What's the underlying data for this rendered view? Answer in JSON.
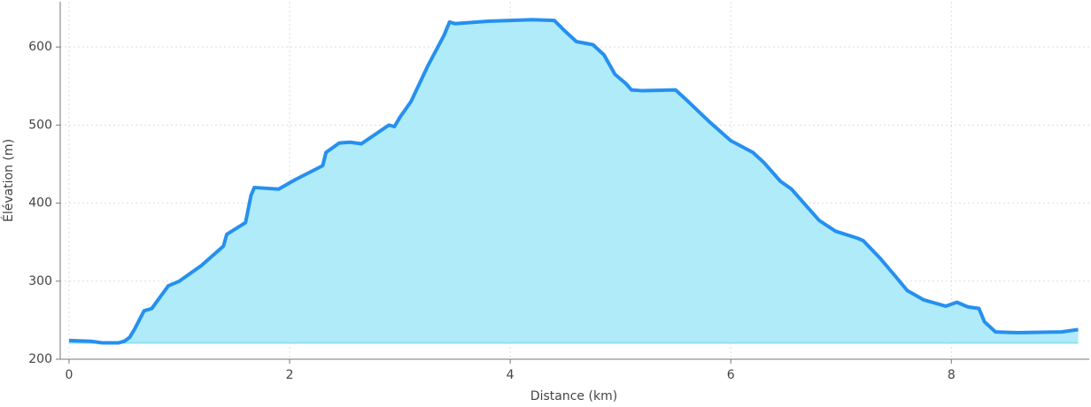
{
  "chart_data": {
    "type": "area",
    "xlabel": "Distance (km)",
    "ylabel": "Élévation (m)",
    "x": [
      0,
      0.2,
      0.3,
      0.45,
      0.5,
      0.55,
      0.6,
      0.68,
      0.75,
      0.9,
      1.0,
      1.2,
      1.4,
      1.43,
      1.6,
      1.65,
      1.68,
      1.9,
      2.05,
      2.3,
      2.33,
      2.45,
      2.55,
      2.65,
      2.9,
      2.95,
      3.0,
      3.1,
      3.15,
      3.25,
      3.4,
      3.45,
      3.5,
      3.8,
      4.2,
      4.4,
      4.5,
      4.6,
      4.75,
      4.85,
      4.95,
      5.05,
      5.1,
      5.2,
      5.5,
      5.6,
      5.8,
      6.0,
      6.2,
      6.3,
      6.45,
      6.55,
      6.65,
      6.8,
      6.95,
      7.15,
      7.2,
      7.35,
      7.5,
      7.6,
      7.75,
      7.85,
      7.95,
      8.05,
      8.15,
      8.25,
      8.3,
      8.4,
      8.6,
      9.0,
      9.15
    ],
    "series": [
      {
        "name": "Élévation",
        "color": "#2590f0",
        "fill": "#b0ebfa",
        "values": [
          224,
          223,
          221,
          221,
          223,
          228,
          240,
          262,
          265,
          294,
          300,
          320,
          345,
          360,
          375,
          410,
          420,
          418,
          430,
          448,
          465,
          477,
          478,
          476,
          500,
          498,
          510,
          530,
          545,
          575,
          615,
          632,
          630,
          633,
          635,
          634,
          620,
          607,
          603,
          590,
          565,
          553,
          545,
          544,
          545,
          532,
          505,
          480,
          465,
          452,
          428,
          418,
          402,
          378,
          364,
          355,
          352,
          330,
          305,
          288,
          276,
          272,
          268,
          273,
          267,
          265,
          248,
          235,
          234,
          235,
          238
        ]
      }
    ],
    "xlim": [
      -0.08,
      9.25
    ],
    "ylim": [
      200,
      658
    ],
    "xticks": [
      0,
      2,
      4,
      6,
      8
    ],
    "yticks": [
      200,
      300,
      400,
      500,
      600
    ],
    "grid": true
  }
}
